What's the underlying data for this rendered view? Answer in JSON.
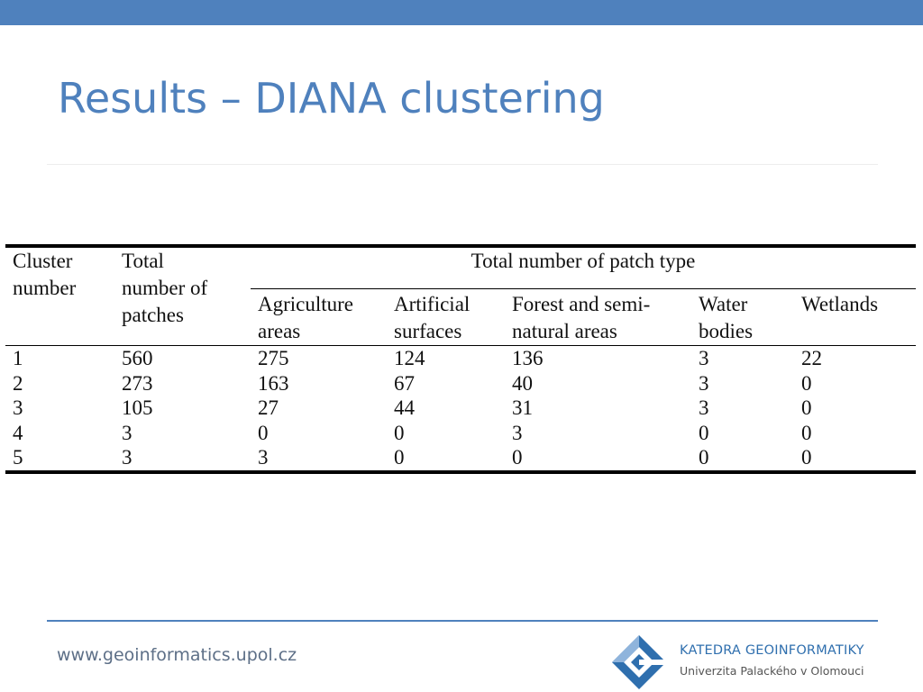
{
  "slide": {
    "title": "Results – DIANA clustering",
    "footer_url": "www.geoinformatics.upol.cz"
  },
  "logo": {
    "title": "KATEDRA GEOINFORMATIKY",
    "subtitle": "Univerzita Palackého v Olomouci"
  },
  "table": {
    "headers": {
      "cluster": [
        "Cluster",
        "number"
      ],
      "total": [
        "Total",
        "number of",
        "patches"
      ],
      "group": "Total number of patch type",
      "types": [
        [
          "Agriculture",
          "areas"
        ],
        [
          "Artificial",
          "surfaces"
        ],
        [
          "Forest and semi-",
          "natural areas"
        ],
        [
          "Water",
          "bodies"
        ],
        [
          "Wetlands"
        ]
      ]
    },
    "rows": [
      [
        "1",
        "560",
        "275",
        "124",
        "136",
        "3",
        "22"
      ],
      [
        "2",
        "273",
        "163",
        "67",
        "40",
        "3",
        "0"
      ],
      [
        "3",
        "105",
        "27",
        "44",
        "31",
        "3",
        "0"
      ],
      [
        "4",
        "3",
        "0",
        "0",
        "3",
        "0",
        "0"
      ],
      [
        "5",
        "3",
        "3",
        "0",
        "0",
        "0",
        "0"
      ]
    ]
  }
}
